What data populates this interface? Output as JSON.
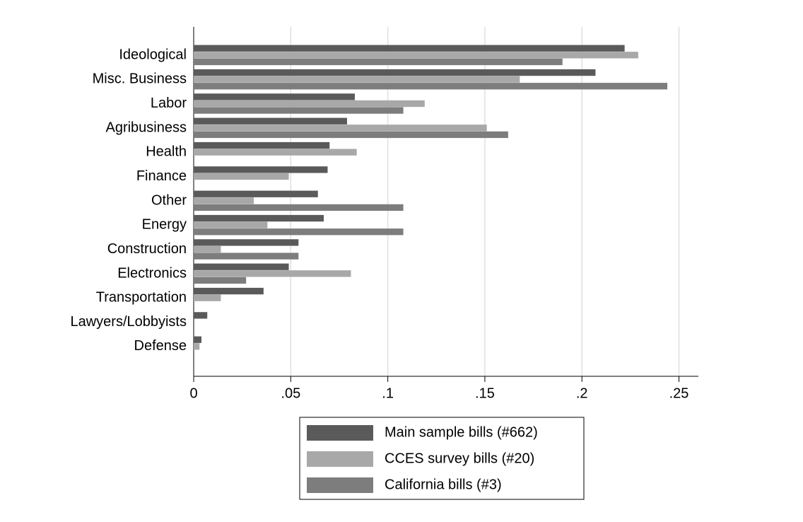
{
  "chart_data": {
    "type": "bar",
    "orientation": "horizontal",
    "categories": [
      "Ideological",
      "Misc. Business",
      "Labor",
      "Agribusiness",
      "Health",
      "Finance",
      "Other",
      "Energy",
      "Construction",
      "Electronics",
      "Transportation",
      "Lawyers/Lobbyists",
      "Defense"
    ],
    "series": [
      {
        "name": "Main sample bills (#662)",
        "color": "#5a5a5a",
        "values": [
          0.222,
          0.207,
          0.083,
          0.079,
          0.07,
          0.069,
          0.064,
          0.067,
          0.054,
          0.049,
          0.036,
          0.007,
          0.004
        ]
      },
      {
        "name": "CCES survey bills (#20)",
        "color": "#a8a8a8",
        "values": [
          0.229,
          0.168,
          0.119,
          0.151,
          0.084,
          0.049,
          0.031,
          0.038,
          0.014,
          0.081,
          0.014,
          0,
          0.003
        ]
      },
      {
        "name": "California bills (#3)",
        "color": "#7d7d7d",
        "values": [
          0.19,
          0.244,
          0.108,
          0.162,
          0,
          0,
          0.108,
          0.108,
          0.054,
          0.027,
          0,
          0,
          0
        ]
      }
    ],
    "xlim": [
      0,
      0.26
    ],
    "xticks": [
      0,
      {
        "value": 0.05,
        "label": ".05"
      },
      {
        "value": 0.1,
        "label": ".1"
      },
      {
        "value": 0.15,
        "label": ".15"
      },
      {
        "value": 0.2,
        "label": ".2"
      },
      {
        "value": 0.25,
        "label": ".25"
      }
    ],
    "grid": true
  }
}
